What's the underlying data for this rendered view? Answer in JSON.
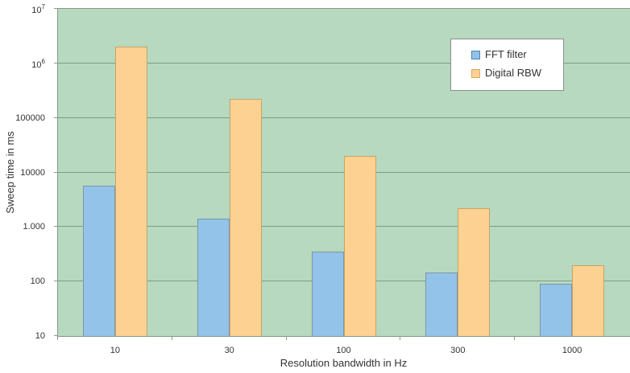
{
  "chart_data": {
    "type": "bar",
    "title": "",
    "xlabel": "Resolution bandwidth in Hz",
    "ylabel": "Sweep time in ms",
    "y_scale": "log",
    "ylim": [
      10,
      10000000
    ],
    "y_ticks": [
      {
        "value": 10,
        "label": "10"
      },
      {
        "value": 100,
        "label": "100"
      },
      {
        "value": 1000,
        "label": "1.000"
      },
      {
        "value": 10000,
        "label": "10000"
      },
      {
        "value": 100000,
        "label": "100000"
      },
      {
        "value": 1000000,
        "label": "10^6"
      },
      {
        "value": 10000000,
        "label": "10^7"
      }
    ],
    "categories": [
      "10",
      "30",
      "100",
      "300",
      "1000"
    ],
    "series": [
      {
        "name": "FFT filter",
        "values": [
          5800,
          1400,
          350,
          145,
          90
        ],
        "fill": "#93c3e8",
        "border": "#7e96a9",
        "swatch_border": "#4f86b8"
      },
      {
        "name": "Digital RBW",
        "values": [
          2000000,
          220000,
          20000,
          2200,
          200
        ],
        "fill": "#fcd191",
        "border": "#c7a567",
        "swatch_border": "#dcaa60"
      }
    ],
    "legend_position": "top-right",
    "grid": true,
    "plot_background": "#b6d9bf",
    "grid_color": "#7f9a89",
    "axis_color": "#8a988c"
  }
}
